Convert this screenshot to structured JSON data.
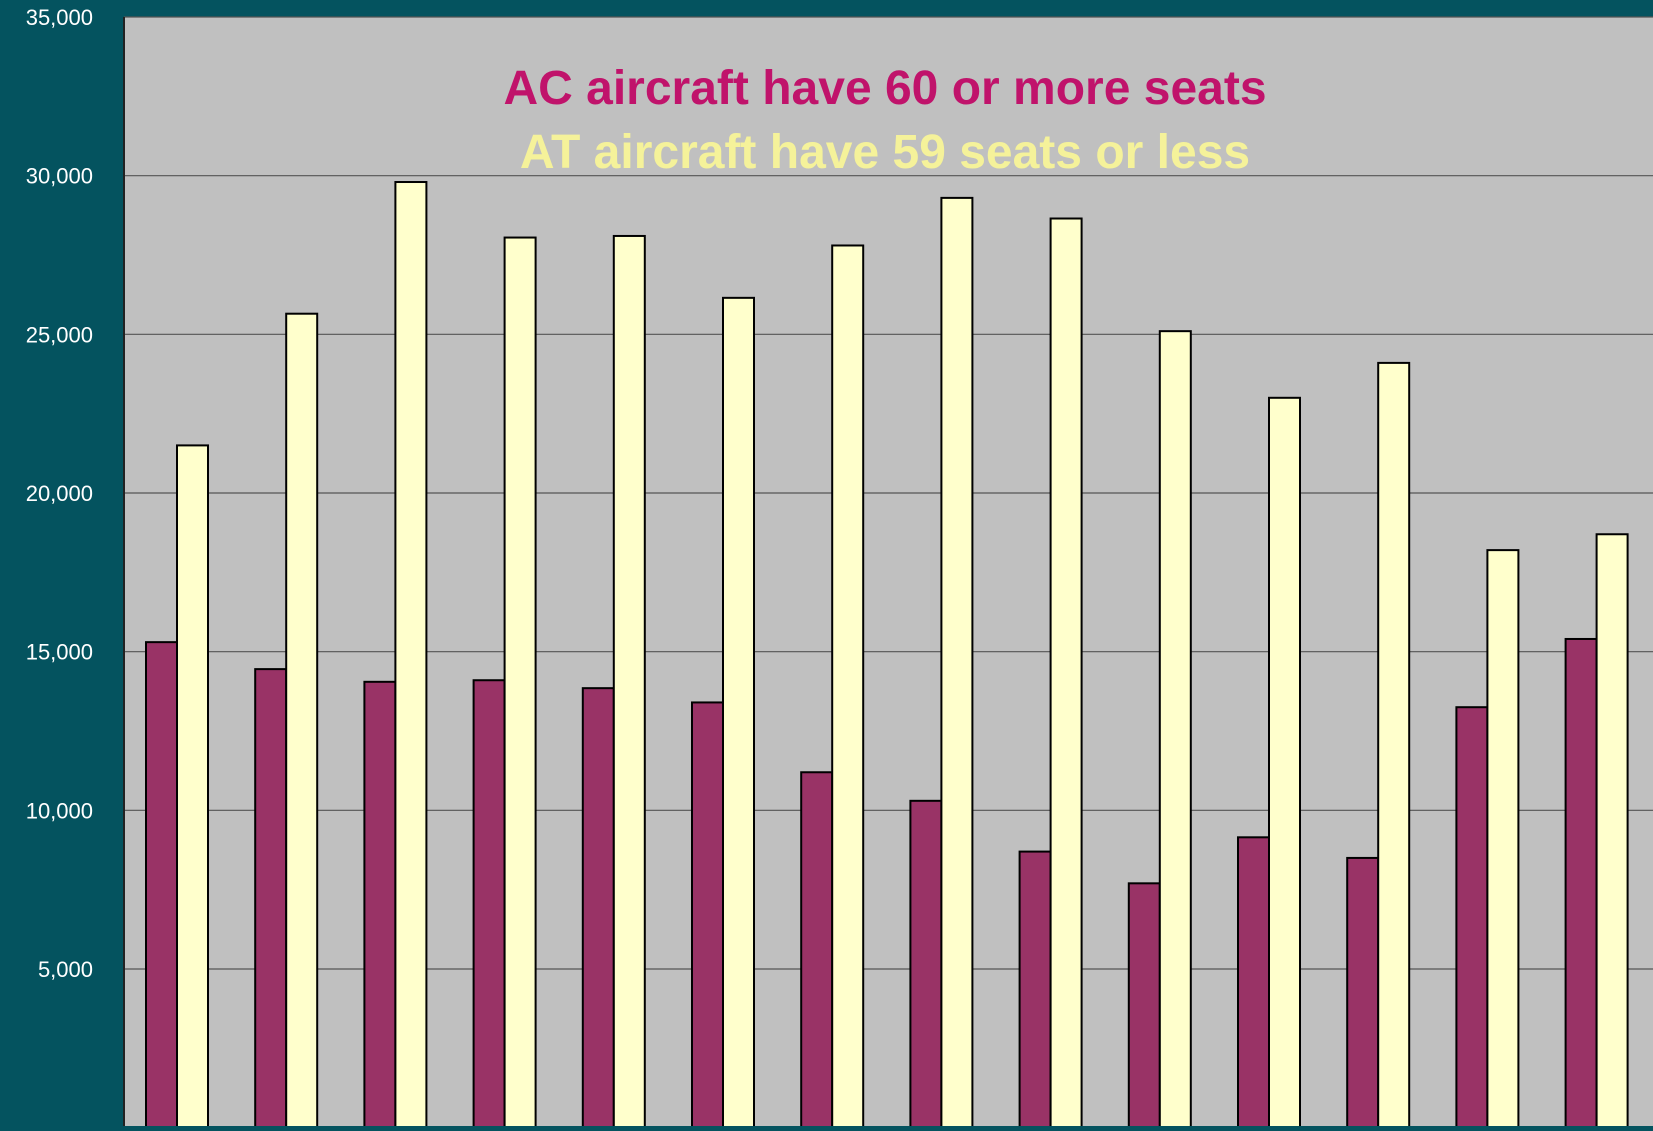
{
  "chart_data": {
    "type": "bar",
    "title_lines": [
      {
        "text": "AC aircraft have 60 or more seats",
        "color": "#c0136b"
      },
      {
        "text": "AT aircraft have 59 seats or less",
        "color": "#f5f29a"
      }
    ],
    "xlabel": "",
    "ylabel": "",
    "ylim": [
      0,
      35000
    ],
    "yticks": [
      {
        "value": 5000,
        "label": "5,000"
      },
      {
        "value": 10000,
        "label": "10,000"
      },
      {
        "value": 15000,
        "label": "15,000"
      },
      {
        "value": 20000,
        "label": "20,000"
      },
      {
        "value": 25000,
        "label": "25,000"
      },
      {
        "value": 30000,
        "label": "30,000"
      },
      {
        "value": 35000,
        "label": "35,000"
      }
    ],
    "grid": true,
    "series": [
      {
        "key": "ac",
        "color": "#993366",
        "values": [
          15300,
          14450,
          14050,
          14100,
          13850,
          13400,
          11200,
          10300,
          8700,
          7700,
          9150,
          8500,
          13250,
          15400
        ]
      },
      {
        "key": "at",
        "color": "#ffffcc",
        "values": [
          21500,
          25650,
          29800,
          28050,
          28100,
          26150,
          27800,
          29300,
          28650,
          25100,
          23000,
          24100,
          18200,
          18700
        ]
      }
    ],
    "colors": {
      "background": "#04535f",
      "plot_area": "#c0c0c0",
      "gridline": "#555555",
      "bar_border": "#000000"
    }
  }
}
